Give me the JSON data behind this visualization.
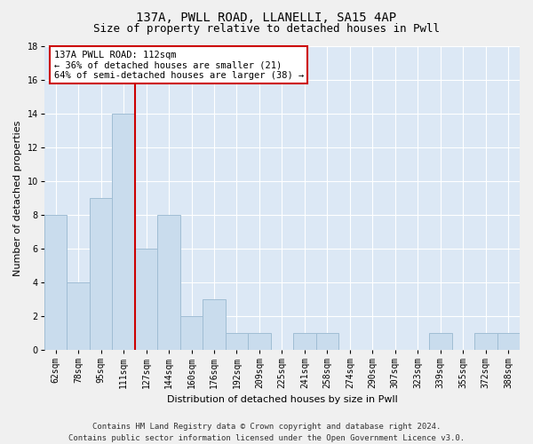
{
  "title1": "137A, PWLL ROAD, LLANELLI, SA15 4AP",
  "title2": "Size of property relative to detached houses in Pwll",
  "xlabel": "Distribution of detached houses by size in Pwll",
  "ylabel": "Number of detached properties",
  "footer": "Contains HM Land Registry data © Crown copyright and database right 2024.\nContains public sector information licensed under the Open Government Licence v3.0.",
  "categories": [
    "62sqm",
    "78sqm",
    "95sqm",
    "111sqm",
    "127sqm",
    "144sqm",
    "160sqm",
    "176sqm",
    "192sqm",
    "209sqm",
    "225sqm",
    "241sqm",
    "258sqm",
    "274sqm",
    "290sqm",
    "307sqm",
    "323sqm",
    "339sqm",
    "355sqm",
    "372sqm",
    "388sqm"
  ],
  "values": [
    8,
    4,
    9,
    14,
    6,
    8,
    2,
    3,
    1,
    1,
    0,
    1,
    1,
    0,
    0,
    0,
    0,
    1,
    0,
    1,
    1
  ],
  "bar_color": "#c9dced",
  "bar_edge_color": "#a0bdd4",
  "highlight_line_index": 3,
  "annotation_line1": "137A PWLL ROAD: 112sqm",
  "annotation_line2": "← 36% of detached houses are smaller (21)",
  "annotation_line3": "64% of semi-detached houses are larger (38) →",
  "annotation_box_color": "#ffffff",
  "annotation_box_edge_color": "#cc0000",
  "annotation_line_color": "#cc0000",
  "ylim": [
    0,
    18
  ],
  "yticks": [
    0,
    2,
    4,
    6,
    8,
    10,
    12,
    14,
    16,
    18
  ],
  "bg_color": "#dce8f5",
  "grid_color": "#ffffff",
  "title_fontsize": 10,
  "subtitle_fontsize": 9,
  "tick_fontsize": 7,
  "ylabel_fontsize": 8,
  "xlabel_fontsize": 8,
  "annotation_fontsize": 7.5,
  "footer_fontsize": 6.5
}
